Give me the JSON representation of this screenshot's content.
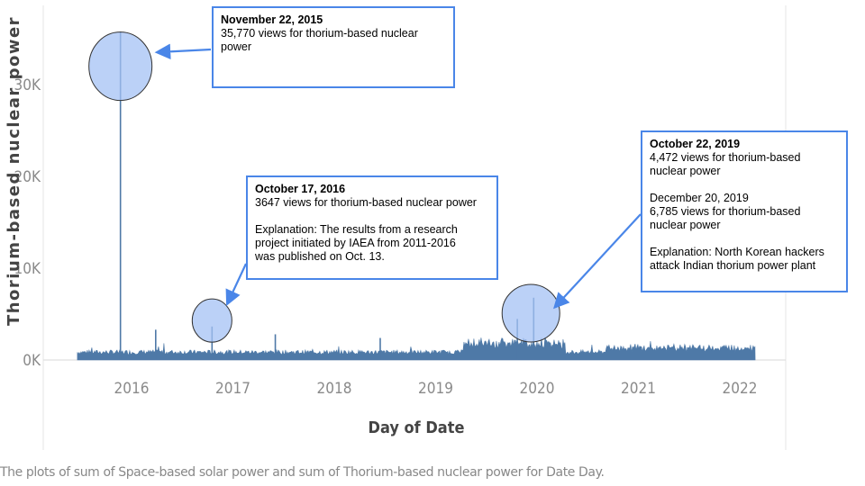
{
  "chart_data": {
    "type": "line",
    "ylabel": "Thorium-based nuclear power",
    "xlabel": "Day of Date",
    "caption": "The plots of sum of Space-based solar power and sum of Thorium-based nuclear power for Date Day.",
    "y_ticks": [
      "0K",
      "10K",
      "20K",
      "30K"
    ],
    "x_ticks": [
      "2016",
      "2017",
      "2018",
      "2019",
      "2020",
      "2021",
      "2022"
    ],
    "ylim": [
      0,
      38000
    ],
    "series_color": "#4e79a7",
    "highlight_color": "#a4c2f4",
    "arrow_color": "#4a86e8",
    "peaks": [
      {
        "date": "2015-11-22",
        "value": 35770
      },
      {
        "date": "2016-03-28",
        "value": 3300
      },
      {
        "date": "2016-10-17",
        "value": 3647
      },
      {
        "date": "2017-06-02",
        "value": 2800
      },
      {
        "date": "2018-06-15",
        "value": 2400
      },
      {
        "date": "2019-10-22",
        "value": 4472
      },
      {
        "date": "2019-12-20",
        "value": 6785
      }
    ],
    "highlights": [
      {
        "date": "2015-11-22",
        "value": 32000
      },
      {
        "date": "2016-10-17",
        "value": 4300
      },
      {
        "date": "2019-12-10",
        "value": 5100
      }
    ]
  },
  "annotations": [
    {
      "id": "nov2015",
      "title": "November 22, 2015",
      "lines": [
        "35,770 views for thorium-based nuclear",
        "power"
      ]
    },
    {
      "id": "oct2016",
      "title": "October 17, 2016",
      "lines": [
        "3647 views for thorium-based nuclear power",
        "",
        "Explanation: The results from a research",
        "project initiated by IAEA from 2011-2016",
        "was published on Oct. 13."
      ]
    },
    {
      "id": "oct2019",
      "title": "October 22, 2019",
      "lines": [
        "4,472  views for thorium-based",
        "nuclear power",
        "",
        "December 20, 2019",
        "6,785 views for thorium-based",
        "nuclear power",
        "",
        "Explanation: North Korean hackers",
        "attack Indian thorium power plant"
      ]
    }
  ]
}
